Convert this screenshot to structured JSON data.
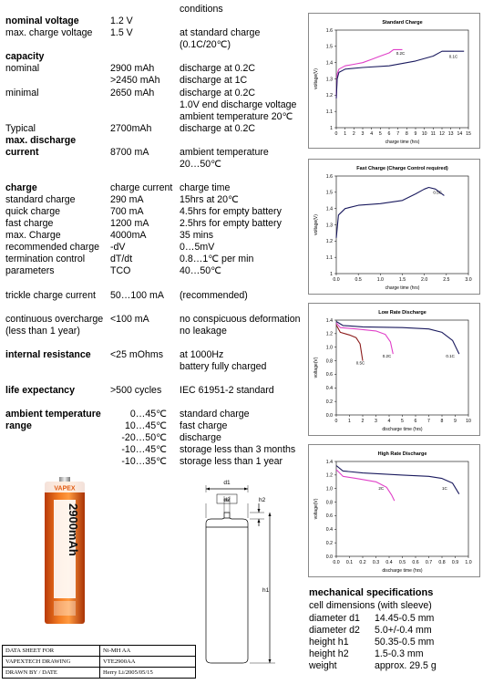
{
  "spec": {
    "conditions_header": "conditions",
    "nominal_voltage": {
      "label": "nominal voltage",
      "value": "1.2 V"
    },
    "max_charge_voltage": {
      "label": "max. charge voltage",
      "value": "1.5 V",
      "cond1": "at standard charge",
      "cond2": "(0.1C/20℃)"
    },
    "capacity": {
      "label": "capacity"
    },
    "nominal": {
      "label": "nominal",
      "v1": "2900 mAh",
      "c1": "discharge at 0.2C",
      "v2": ">2450 mAh",
      "c2": "discharge at 1C"
    },
    "minimal": {
      "label": "minimal",
      "value": "2650 mAh",
      "c1": "discharge at 0.2C",
      "c2": "1.0V end discharge voltage",
      "c3": "ambient temperature 20℃"
    },
    "typical": {
      "label": "Typical",
      "value": "2700mAh",
      "cond": "discharge at 0.2C"
    },
    "max_discharge": {
      "label1": "max. discharge",
      "label2": "current",
      "value": "8700 mA",
      "c1": "ambient temperature",
      "c2": "20…50℃"
    },
    "charge_header": {
      "label": "charge",
      "col2": "charge current",
      "col3": "charge time"
    },
    "charge_rows": [
      {
        "label": "standard charge",
        "value": "290 mA",
        "cond": "15hrs at  20℃"
      },
      {
        "label": "quick charge",
        "value": "700 mA",
        "cond": "4.5hrs for empty battery"
      },
      {
        "label": "fast charge",
        "value": "1200 mA",
        "cond": "2.5hrs for empty battery"
      },
      {
        "label": "max. Charge",
        "value": "4000mA",
        "cond": "35 mins"
      },
      {
        "label": "recommended charge",
        "value": "-dV",
        "cond": "0…5mV"
      },
      {
        "label": "termination control",
        "value": "dT/dt",
        "cond": "0.8…1℃ per min"
      },
      {
        "label": "parameters",
        "value": "TCO",
        "cond": "40…50℃"
      }
    ],
    "trickle": {
      "label": "trickle charge current",
      "value": "50…100 mA",
      "cond": "(recommended)"
    },
    "overcharge": {
      "label1": "continuous overcharge",
      "label2": "(less than 1 year)",
      "value": "<100 mA",
      "c1": "no conspicuous deformation",
      "c2": "no leakage"
    },
    "resistance": {
      "label": "internal resistance",
      "value": "<25 mOhms",
      "c1": "at 1000Hz",
      "c2": "battery fully charged"
    },
    "life": {
      "label": "life expectancy",
      "value": ">500 cycles",
      "cond": "IEC 61951-2 standard"
    },
    "temperature": {
      "label1": "ambient temperature",
      "label2": "range",
      "rows": [
        {
          "value": "0…45℃",
          "cond": "standard charge"
        },
        {
          "value": "10…45℃",
          "cond": "fast charge"
        },
        {
          "value": "-20…50℃",
          "cond": "discharge"
        },
        {
          "value": "-10…45℃",
          "cond": "storage less than 3 months"
        },
        {
          "value": "-10…35℃",
          "cond": "storage less than 1 year"
        }
      ]
    }
  },
  "battery_image": {
    "brand": "VAPEX",
    "capacity_text": "2900mAh",
    "icon": "battery-photo"
  },
  "drawing": {
    "d1": "d1",
    "d2": "d2",
    "h1": "h1",
    "h2": "h2"
  },
  "mech": {
    "title": "mechanical specifications",
    "subtitle": "cell dimensions (with sleeve)",
    "rows": [
      {
        "label": "diameter d1",
        "value": "14.45-0.5 mm"
      },
      {
        "label": "diameter d2",
        "value": "5.0+/-0.4 mm"
      },
      {
        "label": "height h1",
        "value": "50.35-0.5 mm"
      },
      {
        "label": "height h2",
        "value": "1.5-0.3 mm"
      },
      {
        "label": "weight",
        "value": "approx. 29.5 g"
      }
    ]
  },
  "footer": [
    {
      "label": "DATA SHEET FOR",
      "value": "Ni-MH AA"
    },
    {
      "label": "VAPEXTECH DRAWING",
      "value": "VTE2900AA"
    },
    {
      "label": "DRAWN BY / DATE",
      "value": "Herry Li/2005/05/15"
    }
  ],
  "chart_data": [
    {
      "type": "line",
      "title": "Standard Charge",
      "xlabel": "charge time (hrs)",
      "ylabel": "voltage(V)",
      "xlim": [
        0,
        15
      ],
      "ylim": [
        1.0,
        1.6
      ],
      "xticks": [
        0,
        1,
        2,
        3,
        4,
        5,
        6,
        7,
        8,
        9,
        10,
        11,
        12,
        13,
        14,
        15
      ],
      "yticks": [
        1.0,
        1.1,
        1.2,
        1.3,
        1.4,
        1.5,
        1.6
      ],
      "grid": false,
      "series": [
        {
          "name": "0.2C",
          "color": "#e040c8",
          "label_at": [
            6.8,
            1.45
          ],
          "points": [
            [
              0,
              1.18
            ],
            [
              0.1,
              1.33
            ],
            [
              0.3,
              1.36
            ],
            [
              1,
              1.38
            ],
            [
              2,
              1.39
            ],
            [
              3,
              1.4
            ],
            [
              4,
              1.42
            ],
            [
              5,
              1.44
            ],
            [
              6,
              1.46
            ],
            [
              6.5,
              1.48
            ],
            [
              7.5,
              1.48
            ]
          ]
        },
        {
          "name": "0.1C",
          "color": "#1a1a5e",
          "label_at": [
            12.8,
            1.43
          ],
          "points": [
            [
              0,
              1.18
            ],
            [
              0.1,
              1.3
            ],
            [
              0.3,
              1.34
            ],
            [
              1,
              1.36
            ],
            [
              3,
              1.37
            ],
            [
              6,
              1.38
            ],
            [
              9,
              1.41
            ],
            [
              11,
              1.44
            ],
            [
              12,
              1.47
            ],
            [
              13,
              1.47
            ],
            [
              14.5,
              1.47
            ]
          ]
        }
      ]
    },
    {
      "type": "line",
      "title": "Fast Charge (Charge Control required)",
      "xlabel": "charge time (hrs)",
      "ylabel": "voltage(V)",
      "xlim": [
        0,
        3
      ],
      "ylim": [
        1.0,
        1.6
      ],
      "xticks": [
        "0.0",
        "0.5",
        "1.0",
        "1.5",
        "2.0",
        "2.5",
        "3.0"
      ],
      "yticks": [
        1.0,
        1.1,
        1.2,
        1.3,
        1.4,
        1.5,
        1.6
      ],
      "grid": false,
      "series": [
        {
          "name": "0.5C",
          "color": "#1a1a5e",
          "label_at": [
            2.2,
            1.49
          ],
          "points": [
            [
              0,
              1.22
            ],
            [
              0.05,
              1.36
            ],
            [
              0.2,
              1.4
            ],
            [
              0.5,
              1.42
            ],
            [
              1.0,
              1.43
            ],
            [
              1.5,
              1.45
            ],
            [
              1.8,
              1.49
            ],
            [
              2.0,
              1.52
            ],
            [
              2.1,
              1.53
            ],
            [
              2.25,
              1.52
            ],
            [
              2.45,
              1.48
            ]
          ]
        }
      ]
    },
    {
      "type": "line",
      "title": "Low Rate Discharge",
      "xlabel": "discharge time (hrs)",
      "ylabel": "voltage(V)",
      "xlim": [
        0,
        10
      ],
      "ylim": [
        0.0,
        1.4
      ],
      "xticks": [
        0,
        1,
        2,
        3,
        4,
        5,
        6,
        7,
        8,
        9,
        10
      ],
      "yticks": [
        "0.0",
        "0.2",
        "0.4",
        "0.6",
        "0.8",
        "1.0",
        "1.2",
        "1.4"
      ],
      "grid": false,
      "series": [
        {
          "name": "0.1C",
          "color": "#1a1a5e",
          "label_at": [
            8.3,
            0.85
          ],
          "points": [
            [
              0,
              1.38
            ],
            [
              0.5,
              1.32
            ],
            [
              2,
              1.3
            ],
            [
              5,
              1.29
            ],
            [
              7,
              1.27
            ],
            [
              8,
              1.22
            ],
            [
              8.8,
              1.1
            ],
            [
              9.3,
              0.9
            ]
          ]
        },
        {
          "name": "0.2C",
          "color": "#e040c8",
          "label_at": [
            3.5,
            0.85
          ],
          "points": [
            [
              0,
              1.36
            ],
            [
              0.3,
              1.29
            ],
            [
              1.5,
              1.27
            ],
            [
              3,
              1.24
            ],
            [
              3.7,
              1.19
            ],
            [
              4.1,
              1.08
            ],
            [
              4.3,
              0.9
            ]
          ]
        },
        {
          "name": "0.5C",
          "color": "#8b1a1a",
          "label_at": [
            1.5,
            0.75
          ],
          "points": [
            [
              0,
              1.33
            ],
            [
              0.3,
              1.22
            ],
            [
              1,
              1.18
            ],
            [
              1.5,
              1.14
            ],
            [
              1.8,
              1.05
            ],
            [
              2.0,
              0.8
            ]
          ]
        }
      ]
    },
    {
      "type": "line",
      "title": "High Rate Discharge",
      "xlabel": "discharge time (hrs)",
      "ylabel": "voltage(V)",
      "xlim": [
        0,
        1.0
      ],
      "ylim": [
        0.0,
        1.4
      ],
      "xticks": [
        "0.0",
        "0.1",
        "0.2",
        "0.3",
        "0.4",
        "0.5",
        "0.6",
        "0.7",
        "0.8",
        "0.9",
        "1.0"
      ],
      "yticks": [
        "0.0",
        "0.2",
        "0.4",
        "0.6",
        "0.8",
        "1.0",
        "1.2",
        "1.4"
      ],
      "grid": false,
      "series": [
        {
          "name": "1C",
          "color": "#1a1a5e",
          "label_at": [
            0.8,
            0.98
          ],
          "points": [
            [
              0,
              1.34
            ],
            [
              0.05,
              1.26
            ],
            [
              0.2,
              1.23
            ],
            [
              0.5,
              1.2
            ],
            [
              0.7,
              1.18
            ],
            [
              0.8,
              1.15
            ],
            [
              0.88,
              1.08
            ],
            [
              0.93,
              0.92
            ]
          ]
        },
        {
          "name": "2C",
          "color": "#e040c8",
          "label_at": [
            0.32,
            0.98
          ],
          "points": [
            [
              0,
              1.28
            ],
            [
              0.05,
              1.18
            ],
            [
              0.15,
              1.15
            ],
            [
              0.3,
              1.1
            ],
            [
              0.38,
              1.02
            ],
            [
              0.42,
              0.9
            ],
            [
              0.44,
              0.82
            ]
          ]
        }
      ]
    }
  ]
}
